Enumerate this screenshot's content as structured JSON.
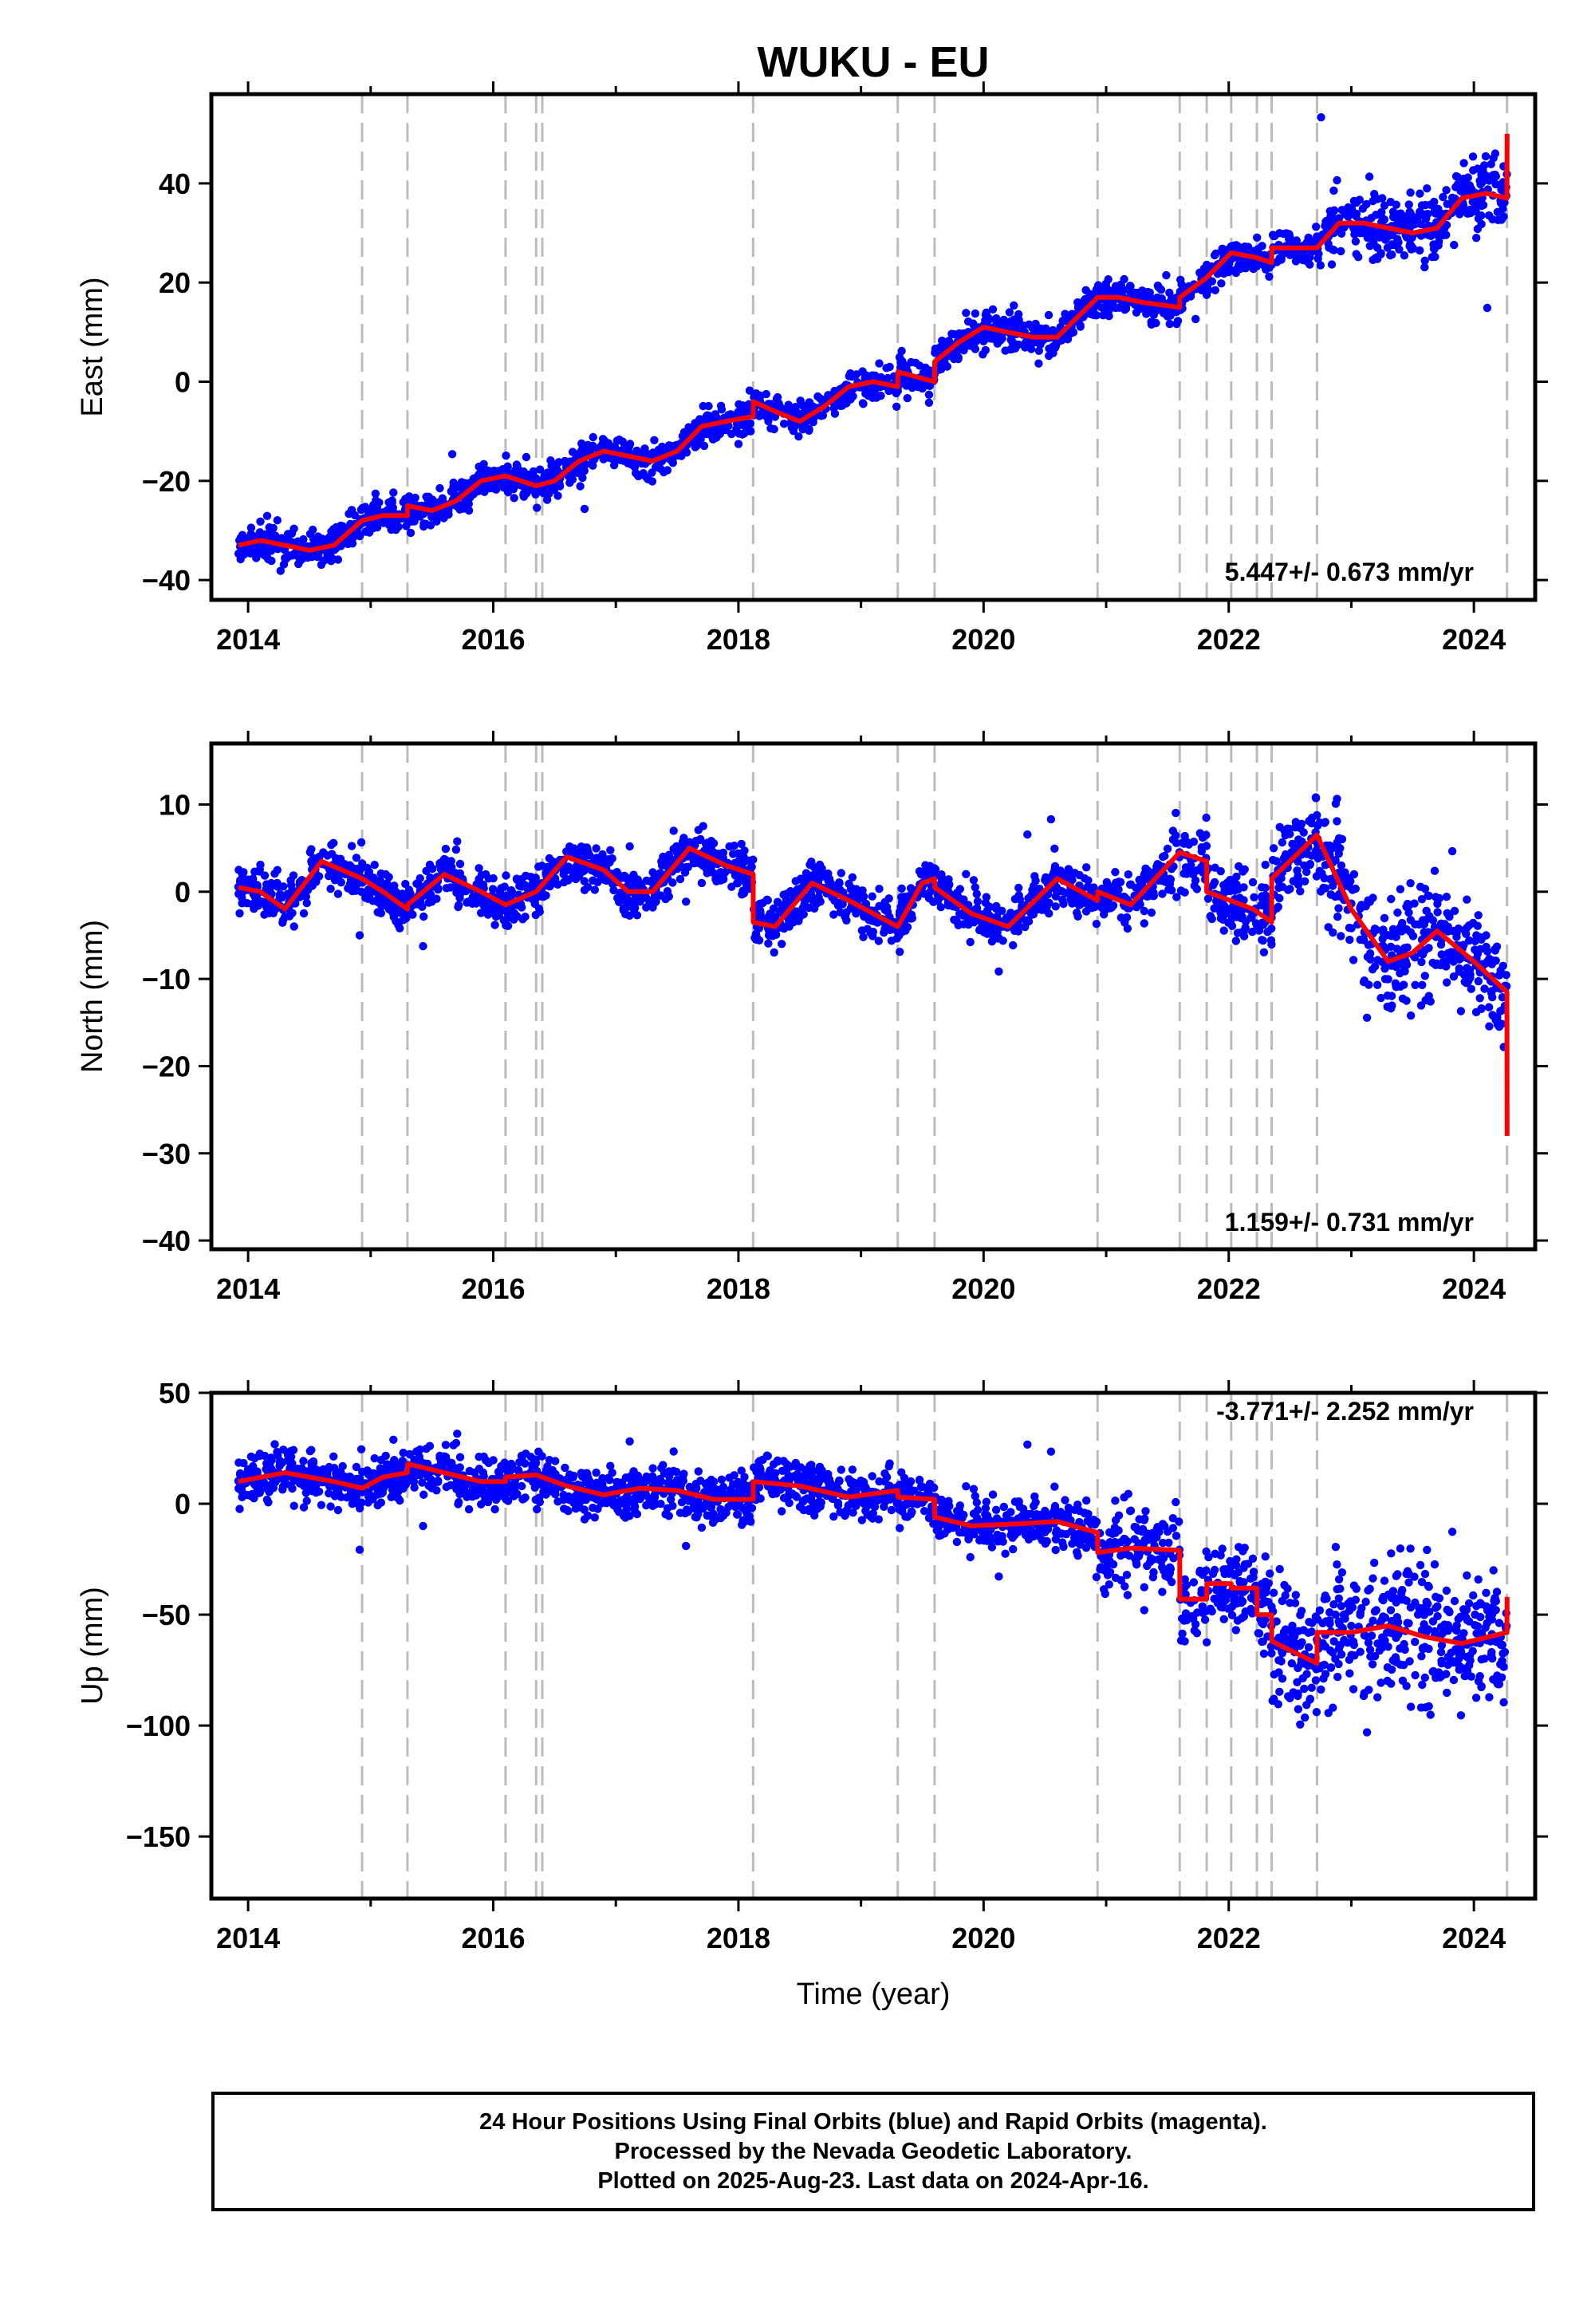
{
  "chart_data": {
    "type": "scatter",
    "title": "WUKU - EU",
    "xlabel": "Time (year)",
    "xlim": [
      2013.7,
      2024.5
    ],
    "x_ticks": [
      2014,
      2016,
      2018,
      2020,
      2022,
      2024
    ],
    "x_tick_labels": [
      "2014",
      "2016",
      "2018",
      "2020",
      "2022",
      "2024"
    ],
    "point_color": "#0000ff",
    "model_color": "#ff0000",
    "event_line_color": "#bbbbbb",
    "event_lines": [
      2014.93,
      2015.3,
      2016.1,
      2016.35,
      2016.4,
      2018.12,
      2019.3,
      2019.6,
      2020.93,
      2021.6,
      2021.82,
      2022.02,
      2022.23,
      2022.35,
      2022.72,
      2024.27
    ],
    "panels": [
      {
        "id": "east",
        "ylabel": "East (mm)",
        "ylim": [
          -44,
          58
        ],
        "y_ticks": [
          -40,
          -20,
          0,
          20,
          40
        ],
        "y_tick_labels": [
          "−40",
          "−20",
          "0",
          "20",
          "40"
        ],
        "rate_label": "5.447+/- 0.673 mm/yr",
        "model": {
          "x": [
            2013.92,
            2014.1,
            2014.3,
            2014.5,
            2014.7,
            2014.93,
            2015.1,
            2015.3,
            2015.301,
            2015.5,
            2015.7,
            2015.9,
            2016.1,
            2016.35,
            2016.5,
            2016.7,
            2016.9,
            2017.1,
            2017.3,
            2017.5,
            2017.7,
            2017.9,
            2018.12,
            2018.121,
            2018.3,
            2018.5,
            2018.7,
            2018.9,
            2019.1,
            2019.3,
            2019.301,
            2019.6,
            2019.601,
            2019.8,
            2020.0,
            2020.2,
            2020.4,
            2020.6,
            2020.93,
            2021.1,
            2021.3,
            2021.6,
            2021.601,
            2021.82,
            2022.02,
            2022.23,
            2022.35,
            2022.351,
            2022.72,
            2022.9,
            2023.1,
            2023.3,
            2023.5,
            2023.7,
            2023.9,
            2024.1,
            2024.27,
            2024.271
          ],
          "y": [
            -33,
            -32,
            -33,
            -34,
            -33,
            -28,
            -27,
            -27,
            -25,
            -26,
            -24,
            -20,
            -19,
            -21,
            -20,
            -16,
            -14,
            -15,
            -16,
            -14,
            -9,
            -8,
            -7,
            -4,
            -6,
            -8,
            -5,
            -1,
            0,
            -1,
            2,
            0,
            4,
            8,
            11,
            10,
            9,
            9,
            17,
            17,
            16,
            15,
            17,
            21,
            26,
            25,
            24,
            27,
            27,
            32,
            32,
            31,
            30,
            31,
            37,
            38,
            37,
            50
          ]
        }
      },
      {
        "id": "north",
        "ylabel": "North (mm)",
        "ylim": [
          -41,
          17
        ],
        "y_ticks": [
          -40,
          -30,
          -20,
          -10,
          0,
          10
        ],
        "y_tick_labels": [
          "−40",
          "−30",
          "−20",
          "−10",
          "0",
          "10"
        ],
        "rate_label": "1.159+/- 0.731 mm/yr",
        "model": {
          "x": [
            2013.92,
            2014.1,
            2014.3,
            2014.6,
            2014.93,
            2015.1,
            2015.3,
            2015.301,
            2015.6,
            2015.9,
            2016.1,
            2016.35,
            2016.6,
            2016.9,
            2017.1,
            2017.3,
            2017.6,
            2017.9,
            2018.12,
            2018.121,
            2018.3,
            2018.6,
            2018.9,
            2019.3,
            2019.5,
            2019.6,
            2019.601,
            2019.9,
            2020.2,
            2020.6,
            2020.93,
            2020.931,
            2021.2,
            2021.6,
            2021.82,
            2021.821,
            2022.2,
            2022.35,
            2022.351,
            2022.72,
            2023.0,
            2023.3,
            2023.5,
            2023.7,
            2024.0,
            2024.27,
            2024.271
          ],
          "y": [
            0.5,
            0,
            -2,
            3.5,
            1.5,
            0,
            -2,
            -1.5,
            2,
            0,
            -1.5,
            0,
            4,
            2.5,
            0,
            0,
            5,
            3,
            2,
            -3.5,
            -4,
            1,
            -1,
            -4,
            1,
            1.5,
            0.5,
            -2.5,
            -4,
            1.5,
            -1,
            0,
            -1.5,
            4.5,
            3.5,
            0,
            -2,
            -3.5,
            1.5,
            6.5,
            -2,
            -8,
            -7,
            -4.5,
            -8,
            -11.5,
            -28
          ]
        }
      },
      {
        "id": "up",
        "ylabel": "Up (mm)",
        "ylim": [
          -178,
          50
        ],
        "y_ticks": [
          -150,
          -100,
          -50,
          0,
          50
        ],
        "y_tick_labels": [
          "−150",
          "−100",
          "−50",
          "0",
          "50"
        ],
        "rate_label": "-3.771+/- 2.252 mm/yr",
        "model": {
          "x": [
            2013.92,
            2014.3,
            2014.7,
            2014.93,
            2015.1,
            2015.3,
            2015.301,
            2015.6,
            2015.9,
            2016.1,
            2016.101,
            2016.35,
            2016.6,
            2016.9,
            2017.2,
            2017.5,
            2017.8,
            2018.12,
            2018.121,
            2018.5,
            2018.9,
            2019.3,
            2019.301,
            2019.6,
            2019.601,
            2019.9,
            2020.3,
            2020.6,
            2020.93,
            2020.931,
            2021.2,
            2021.6,
            2021.601,
            2021.82,
            2021.821,
            2022.02,
            2022.021,
            2022.23,
            2022.231,
            2022.35,
            2022.351,
            2022.72,
            2022.721,
            2023.0,
            2023.3,
            2023.6,
            2023.9,
            2024.27,
            2024.271
          ],
          "y": [
            10,
            14,
            10,
            7,
            12,
            14,
            18,
            14,
            10,
            10,
            12,
            13,
            8,
            4,
            7,
            6,
            2,
            2,
            10,
            8,
            3,
            6,
            3,
            2,
            -6,
            -10,
            -9,
            -8,
            -13,
            -22,
            -20,
            -21,
            -43,
            -43,
            -36,
            -36,
            -38,
            -38,
            -50,
            -50,
            -62,
            -72,
            -58,
            -58,
            -55,
            -60,
            -63,
            -58,
            -42
          ]
        }
      }
    ]
  },
  "footer": {
    "line1": "24 Hour Positions Using Final Orbits (blue) and Rapid Orbits (magenta).",
    "line2": "Processed by the Nevada Geodetic Laboratory.",
    "line3": "Plotted on 2025-Aug-23. Last data on 2024-Apr-16."
  }
}
